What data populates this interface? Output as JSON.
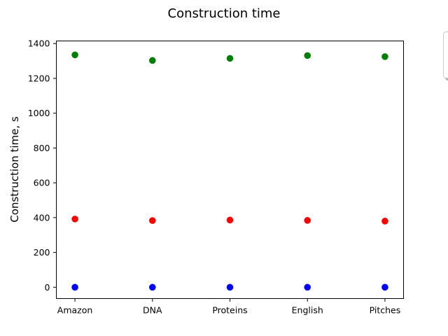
{
  "chart_data": {
    "type": "scatter",
    "title": "Construction time",
    "xlabel": "",
    "ylabel": "Construction time, s",
    "categories": [
      "Amazon",
      "DNA",
      "Proteins",
      "English",
      "Pitches"
    ],
    "series": [
      {
        "color": "#0000ff",
        "values": [
          0,
          0,
          0,
          0,
          0
        ]
      },
      {
        "color": "#ff0000",
        "values": [
          392,
          383,
          386,
          384,
          380
        ]
      },
      {
        "color": "#008000",
        "values": [
          1335,
          1303,
          1315,
          1331,
          1325
        ]
      }
    ],
    "yticks": [
      0,
      200,
      400,
      600,
      800,
      1000,
      1200,
      1400
    ],
    "ylim": [
      -65,
      1415
    ],
    "grid": false,
    "legend": {
      "placement": "right, outside plot (cut off)",
      "entries": []
    }
  }
}
